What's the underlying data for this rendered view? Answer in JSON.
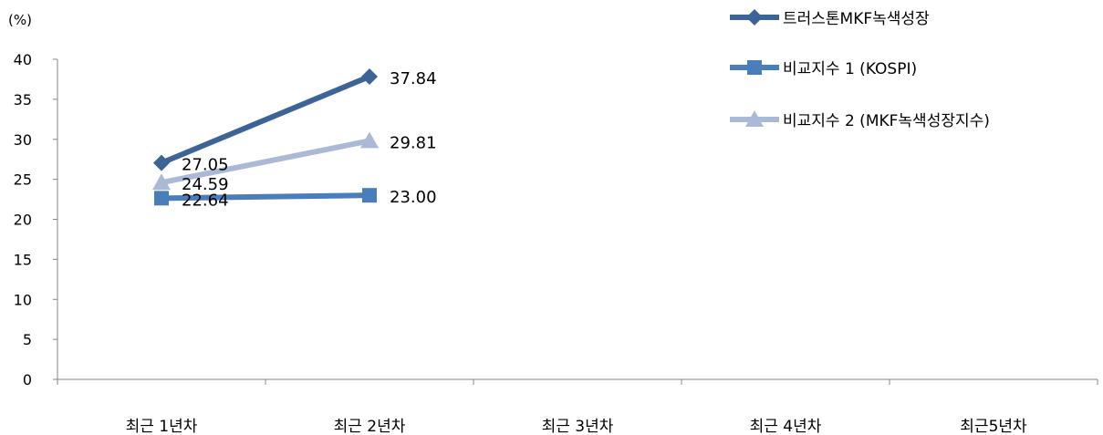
{
  "chart_data": {
    "type": "line",
    "ylabel": "(%)",
    "ylim": [
      0,
      40
    ],
    "yticks": [
      "0",
      "5",
      "10",
      "15",
      "20",
      "25",
      "30",
      "35",
      "40"
    ],
    "ytick_values": [
      0,
      5,
      10,
      15,
      20,
      25,
      30,
      35,
      40
    ],
    "categories": [
      "최근 1년차",
      "최근 2년차",
      "최근 3년차",
      "최근 4년차",
      "최근5년차"
    ],
    "legend_position": "top-right",
    "grid": false,
    "series": [
      {
        "name": "트러스톤MKF녹색성장",
        "color": "#3d6496",
        "marker": "diamond",
        "values": [
          27.05,
          37.84,
          null,
          null,
          null
        ],
        "labels": [
          "27.05",
          "37.84"
        ]
      },
      {
        "name": "비교지수 1 (KOSPI)",
        "color": "#4a7ebb",
        "marker": "square",
        "values": [
          22.64,
          23.0,
          null,
          null,
          null
        ],
        "labels": [
          "22.64",
          "23.00"
        ]
      },
      {
        "name": "비교지수 2 (MKF녹색성장지수)",
        "color": "#a9b9d6",
        "marker": "triangle",
        "values": [
          24.59,
          29.81,
          null,
          null,
          null
        ],
        "labels": [
          "24.59",
          "29.81"
        ]
      }
    ]
  }
}
